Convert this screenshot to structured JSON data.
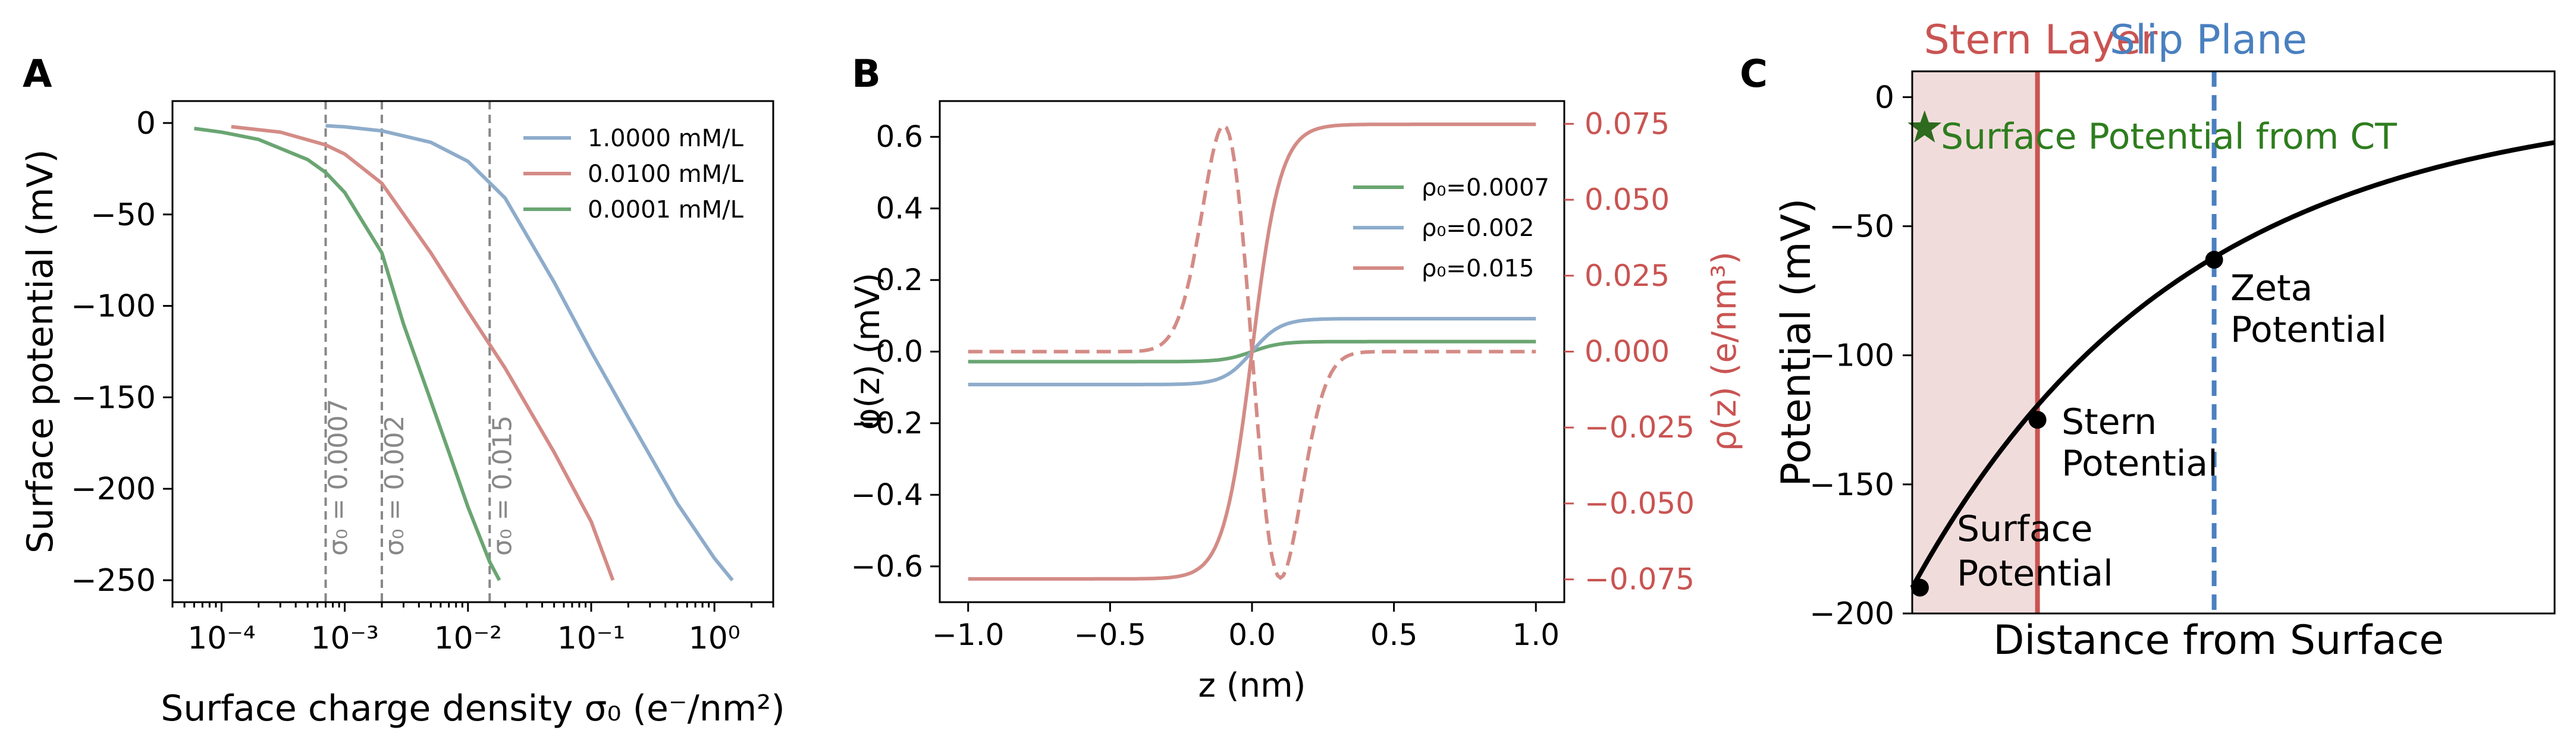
{
  "panels": [
    {
      "letter": "A",
      "xlabel": "Surface charge density σ₀ (e⁻/nm²)",
      "ylabel": "Surface potential (mV)"
    },
    {
      "letter": "B",
      "xlabel": "z (nm)",
      "ylabel_left": "φ(z) (mV)",
      "ylabel_right": "ρ(z) (e/nm³)"
    },
    {
      "letter": "C",
      "xlabel": "Distance from Surface",
      "ylabel": "Potential (mV)",
      "region_labels": {
        "stern_layer": "Stern Layer",
        "slip_plane": "Slip Plane"
      },
      "annotations": {
        "surface_ct": "Surface Potential from CT",
        "zeta": [
          "Zeta",
          "Potential"
        ],
        "stern": [
          "Stern",
          "Potential"
        ],
        "surface": [
          "Surface",
          "Potential"
        ]
      }
    }
  ],
  "colors": {
    "green": "#6aa572",
    "blue": "#8eaccb",
    "red": "#d48b86",
    "axis_red": "#c95452",
    "slip_blue": "#4a80c0",
    "dark_green": "#2e7d1e",
    "stern_fill": "#f1dcdc",
    "dash_grey": "#888888"
  },
  "chart_data": [
    {
      "type": "line",
      "title": "",
      "xlabel": "Surface charge density σ₀ (e⁻/nm²)",
      "ylabel": "Surface potential (mV)",
      "xscale": "log",
      "xlim": [
        4e-05,
        3
      ],
      "ylim": [
        -262,
        12
      ],
      "xticks": [
        0.0001,
        0.001,
        0.01,
        0.1,
        1
      ],
      "xtick_labels": [
        "10⁻⁴",
        "10⁻³",
        "10⁻²",
        "10⁻¹",
        "10⁰"
      ],
      "yticks": [
        0,
        -50,
        -100,
        -150,
        -200,
        -250
      ],
      "ytick_labels": [
        "0",
        "−50",
        "−100",
        "−150",
        "−200",
        "−250"
      ],
      "legend": "top-right",
      "series": [
        {
          "name": "1.0000 mM/L",
          "color": "blue",
          "points": [
            [
              0.0007,
              -1.5
            ],
            [
              0.001,
              -2.1
            ],
            [
              0.002,
              -4.3
            ],
            [
              0.005,
              -10.6
            ],
            [
              0.01,
              -21
            ],
            [
              0.02,
              -41
            ],
            [
              0.05,
              -87
            ],
            [
              0.1,
              -125
            ],
            [
              0.2,
              -161
            ],
            [
              0.5,
              -208
            ],
            [
              1.0,
              -238
            ],
            [
              1.4,
              -250
            ]
          ]
        },
        {
          "name": "0.0100 mM/L",
          "color": "red",
          "points": [
            [
              0.00012,
              -2
            ],
            [
              0.0003,
              -5
            ],
            [
              0.0007,
              -12
            ],
            [
              0.001,
              -17
            ],
            [
              0.002,
              -33
            ],
            [
              0.005,
              -71
            ],
            [
              0.01,
              -103
            ],
            [
              0.02,
              -134
            ],
            [
              0.05,
              -180
            ],
            [
              0.1,
              -218
            ],
            [
              0.15,
              -250
            ]
          ]
        },
        {
          "name": "0.0001 mM/L",
          "color": "green",
          "points": [
            [
              6e-05,
              -3
            ],
            [
              0.0001,
              -5
            ],
            [
              0.0002,
              -9
            ],
            [
              0.0005,
              -20
            ],
            [
              0.0007,
              -27
            ],
            [
              0.001,
              -38
            ],
            [
              0.002,
              -71
            ],
            [
              0.003,
              -110
            ],
            [
              0.005,
              -152
            ],
            [
              0.007,
              -180
            ],
            [
              0.01,
              -210
            ],
            [
              0.015,
              -240
            ],
            [
              0.018,
              -250
            ]
          ]
        }
      ],
      "vlines": [
        {
          "x": 0.0007,
          "label": "σ₀ = 0.0007"
        },
        {
          "x": 0.002,
          "label": "σ₀ = 0.002"
        },
        {
          "x": 0.015,
          "label": "σ₀ = 0.015"
        }
      ]
    },
    {
      "type": "line",
      "title": "",
      "xlabel": "z (nm)",
      "ylabel": "φ(z) (mV)",
      "ylabel_right": "ρ(z) (e/nm³)",
      "xlim": [
        -1.1,
        1.1
      ],
      "ylim": [
        -0.7,
        0.7
      ],
      "ylim_right": [
        -0.0825,
        0.0825
      ],
      "xticks": [
        -1.0,
        -0.5,
        0.0,
        0.5,
        1.0
      ],
      "xtick_labels": [
        "−1.0",
        "−0.5",
        "0.0",
        "0.5",
        "1.0"
      ],
      "yticks": [
        0.6,
        0.4,
        0.2,
        0.0,
        -0.2,
        -0.4,
        -0.6
      ],
      "ytick_labels": [
        "0.6",
        "0.4",
        "0.2",
        "0.0",
        "−0.2",
        "−0.4",
        "−0.6"
      ],
      "yticks_right": [
        0.075,
        0.05,
        0.025,
        0.0,
        -0.025,
        -0.05,
        -0.075
      ],
      "ytick_labels_right": [
        "0.075",
        "0.050",
        "0.025",
        "0.000",
        "−0.025",
        "−0.050",
        "−0.075"
      ],
      "legend": "upper-right",
      "series": [
        {
          "name": "ρ₀=0.0007",
          "color": "green",
          "style": "solid",
          "axis": "left",
          "amplitude": 0.028,
          "width": 0.1
        },
        {
          "name": "ρ₀=0.002",
          "color": "blue",
          "style": "solid",
          "axis": "left",
          "amplitude": 0.092,
          "width": 0.1
        },
        {
          "name": "ρ₀=0.015",
          "color": "red",
          "style": "solid",
          "axis": "left",
          "amplitude": 0.635,
          "width": 0.1
        },
        {
          "name": "",
          "color": "red",
          "style": "dashed",
          "axis": "right",
          "amplitude": -0.0745,
          "width": 0.1
        }
      ]
    },
    {
      "type": "line",
      "title": "",
      "xlabel": "Distance from Surface",
      "ylabel": "Potential (mV)",
      "xlim": [
        0,
        1
      ],
      "ylim": [
        -200,
        10
      ],
      "yticks": [
        0,
        -50,
        -100,
        -150,
        -200
      ],
      "ytick_labels": [
        "0",
        "−50",
        "−100",
        "−150",
        "−200"
      ],
      "xticks": [],
      "stern_layer_x": 0.195,
      "slip_plane_x": 0.47,
      "series": [
        {
          "name": "",
          "color": "black",
          "phi0": -190,
          "decay": 0.42
        }
      ],
      "markers": [
        {
          "x": 0.012,
          "y": -190,
          "label": "Surface Potential"
        },
        {
          "x": 0.195,
          "y": -125,
          "label": "Stern Potential"
        },
        {
          "x": 0.47,
          "y": -63,
          "label": "Zeta Potential"
        }
      ],
      "star": {
        "x": 0.01,
        "y": -12,
        "label": "Surface Potential from CT"
      }
    }
  ]
}
